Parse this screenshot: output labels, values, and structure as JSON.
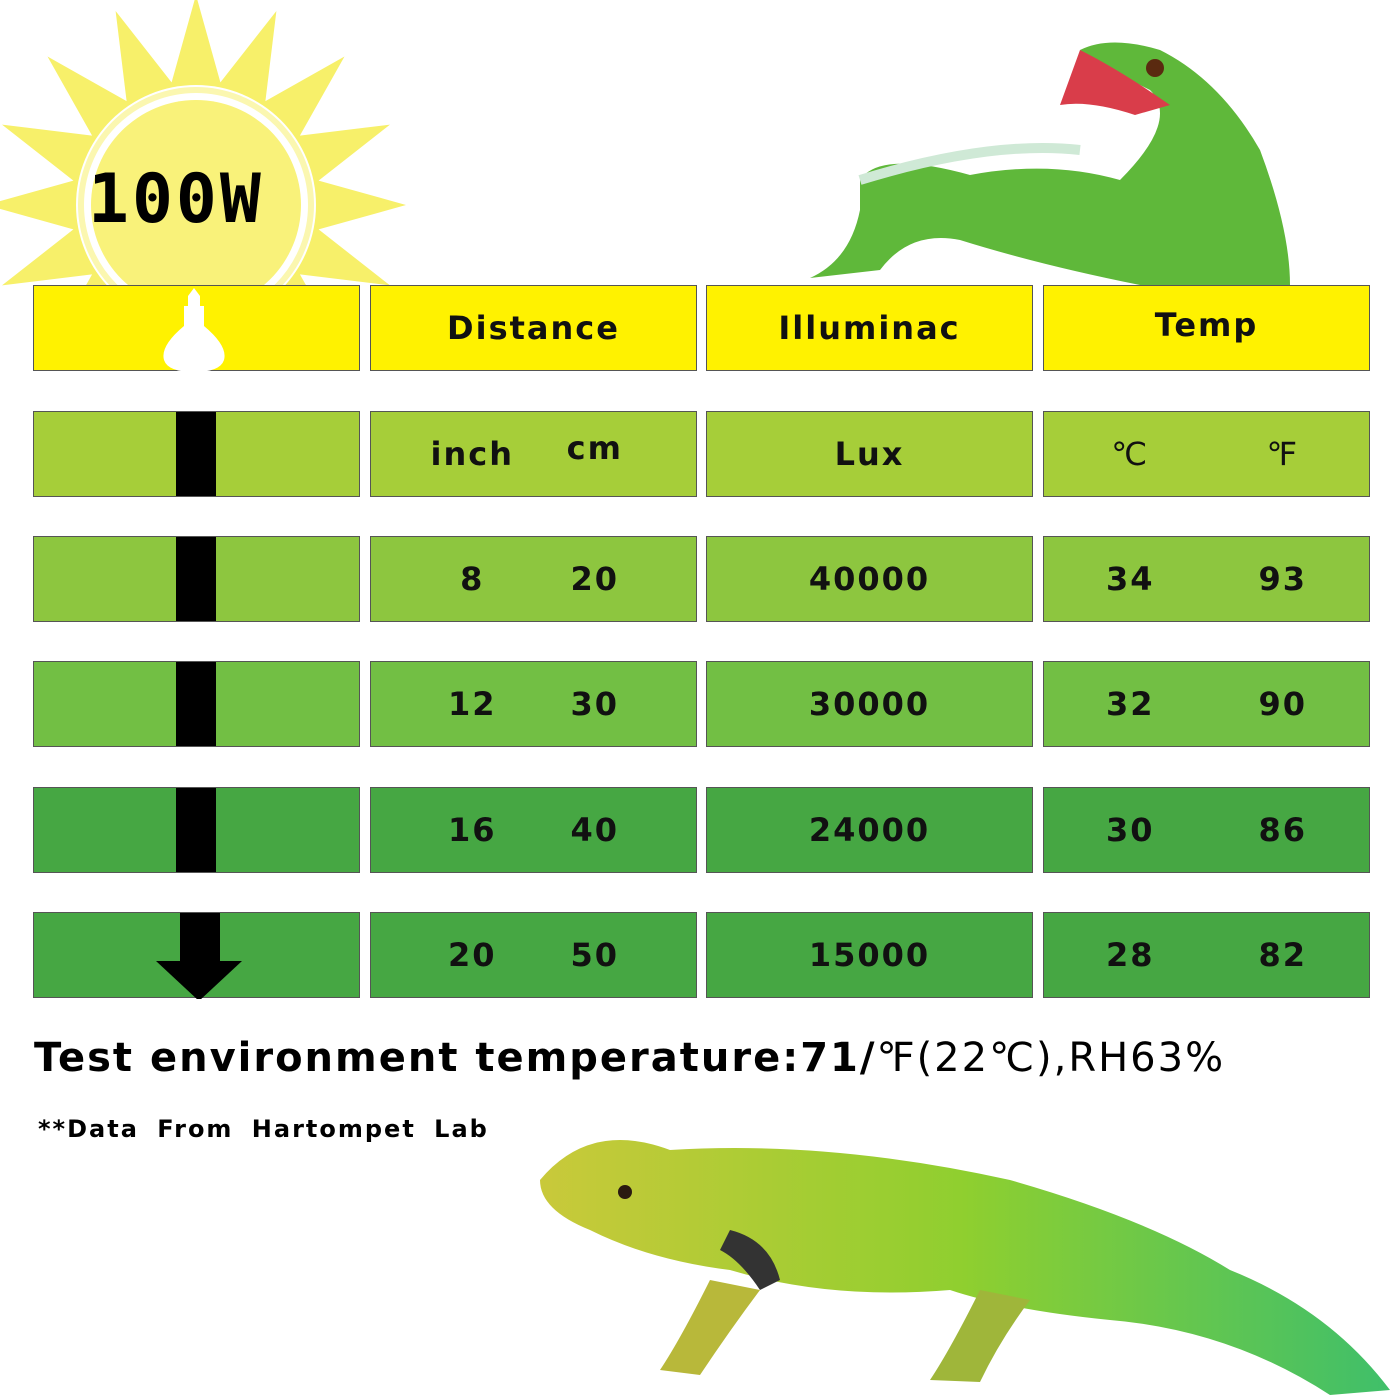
{
  "wattage": "100W",
  "colors": {
    "header": "#fff200",
    "row1": "#a6ce39",
    "row2": "#8dc63f",
    "row3": "#72bf44",
    "row4": "#46a743",
    "row5": "#46a743",
    "sun": "#f7f06a"
  },
  "header": {
    "icon": "bulb-icon",
    "columns": [
      "Distance",
      "Illuminac",
      "Temp"
    ]
  },
  "units": {
    "distance": [
      "inch",
      "cm"
    ],
    "lux": "Lux",
    "temp": [
      "℃",
      "℉"
    ]
  },
  "rows": [
    {
      "inch": "8",
      "cm": "20",
      "lux": "40000",
      "c": "34",
      "f": "93"
    },
    {
      "inch": "12",
      "cm": "30",
      "lux": "30000",
      "c": "32",
      "f": "90"
    },
    {
      "inch": "16",
      "cm": "40",
      "lux": "24000",
      "c": "30",
      "f": "86"
    },
    {
      "inch": "20",
      "cm": "50",
      "lux": "15000",
      "c": "28",
      "f": "82"
    }
  ],
  "environment": {
    "bold": "Test environment temperature:71/",
    "light": "℉(22℃),RH63%"
  },
  "source": "**Data From Hartompet Lab"
}
